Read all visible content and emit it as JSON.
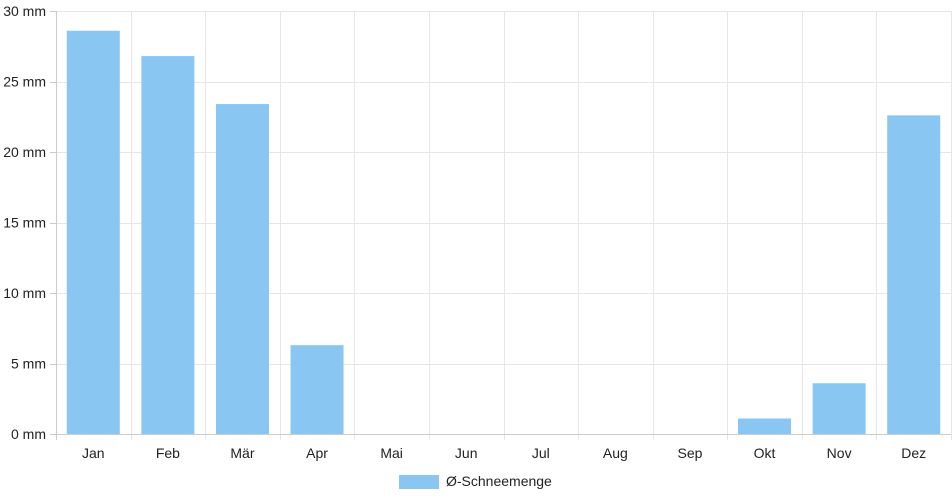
{
  "chart_data": {
    "type": "bar",
    "categories": [
      "Jan",
      "Feb",
      "Mär",
      "Apr",
      "Mai",
      "Jun",
      "Jul",
      "Aug",
      "Sep",
      "Okt",
      "Nov",
      "Dez"
    ],
    "series": [
      {
        "name": "Ø-Schneemenge",
        "values": [
          28.6,
          26.8,
          23.4,
          6.3,
          0,
          0,
          0,
          0,
          0,
          1.1,
          3.6,
          22.6
        ],
        "color": "#89c6f2"
      }
    ],
    "yticks": [
      {
        "value": 0,
        "label": "0 mm"
      },
      {
        "value": 5,
        "label": "5 mm"
      },
      {
        "value": 10,
        "label": "10 mm"
      },
      {
        "value": 15,
        "label": "15 mm"
      },
      {
        "value": 20,
        "label": "20 mm"
      },
      {
        "value": 25,
        "label": "25 mm"
      },
      {
        "value": 30,
        "label": "30 mm"
      }
    ],
    "ylim": [
      0,
      30
    ],
    "grid": true,
    "legend_position": "bottom-center",
    "grid_color": "#e6e6e6",
    "axis_color": "#cccccc"
  }
}
